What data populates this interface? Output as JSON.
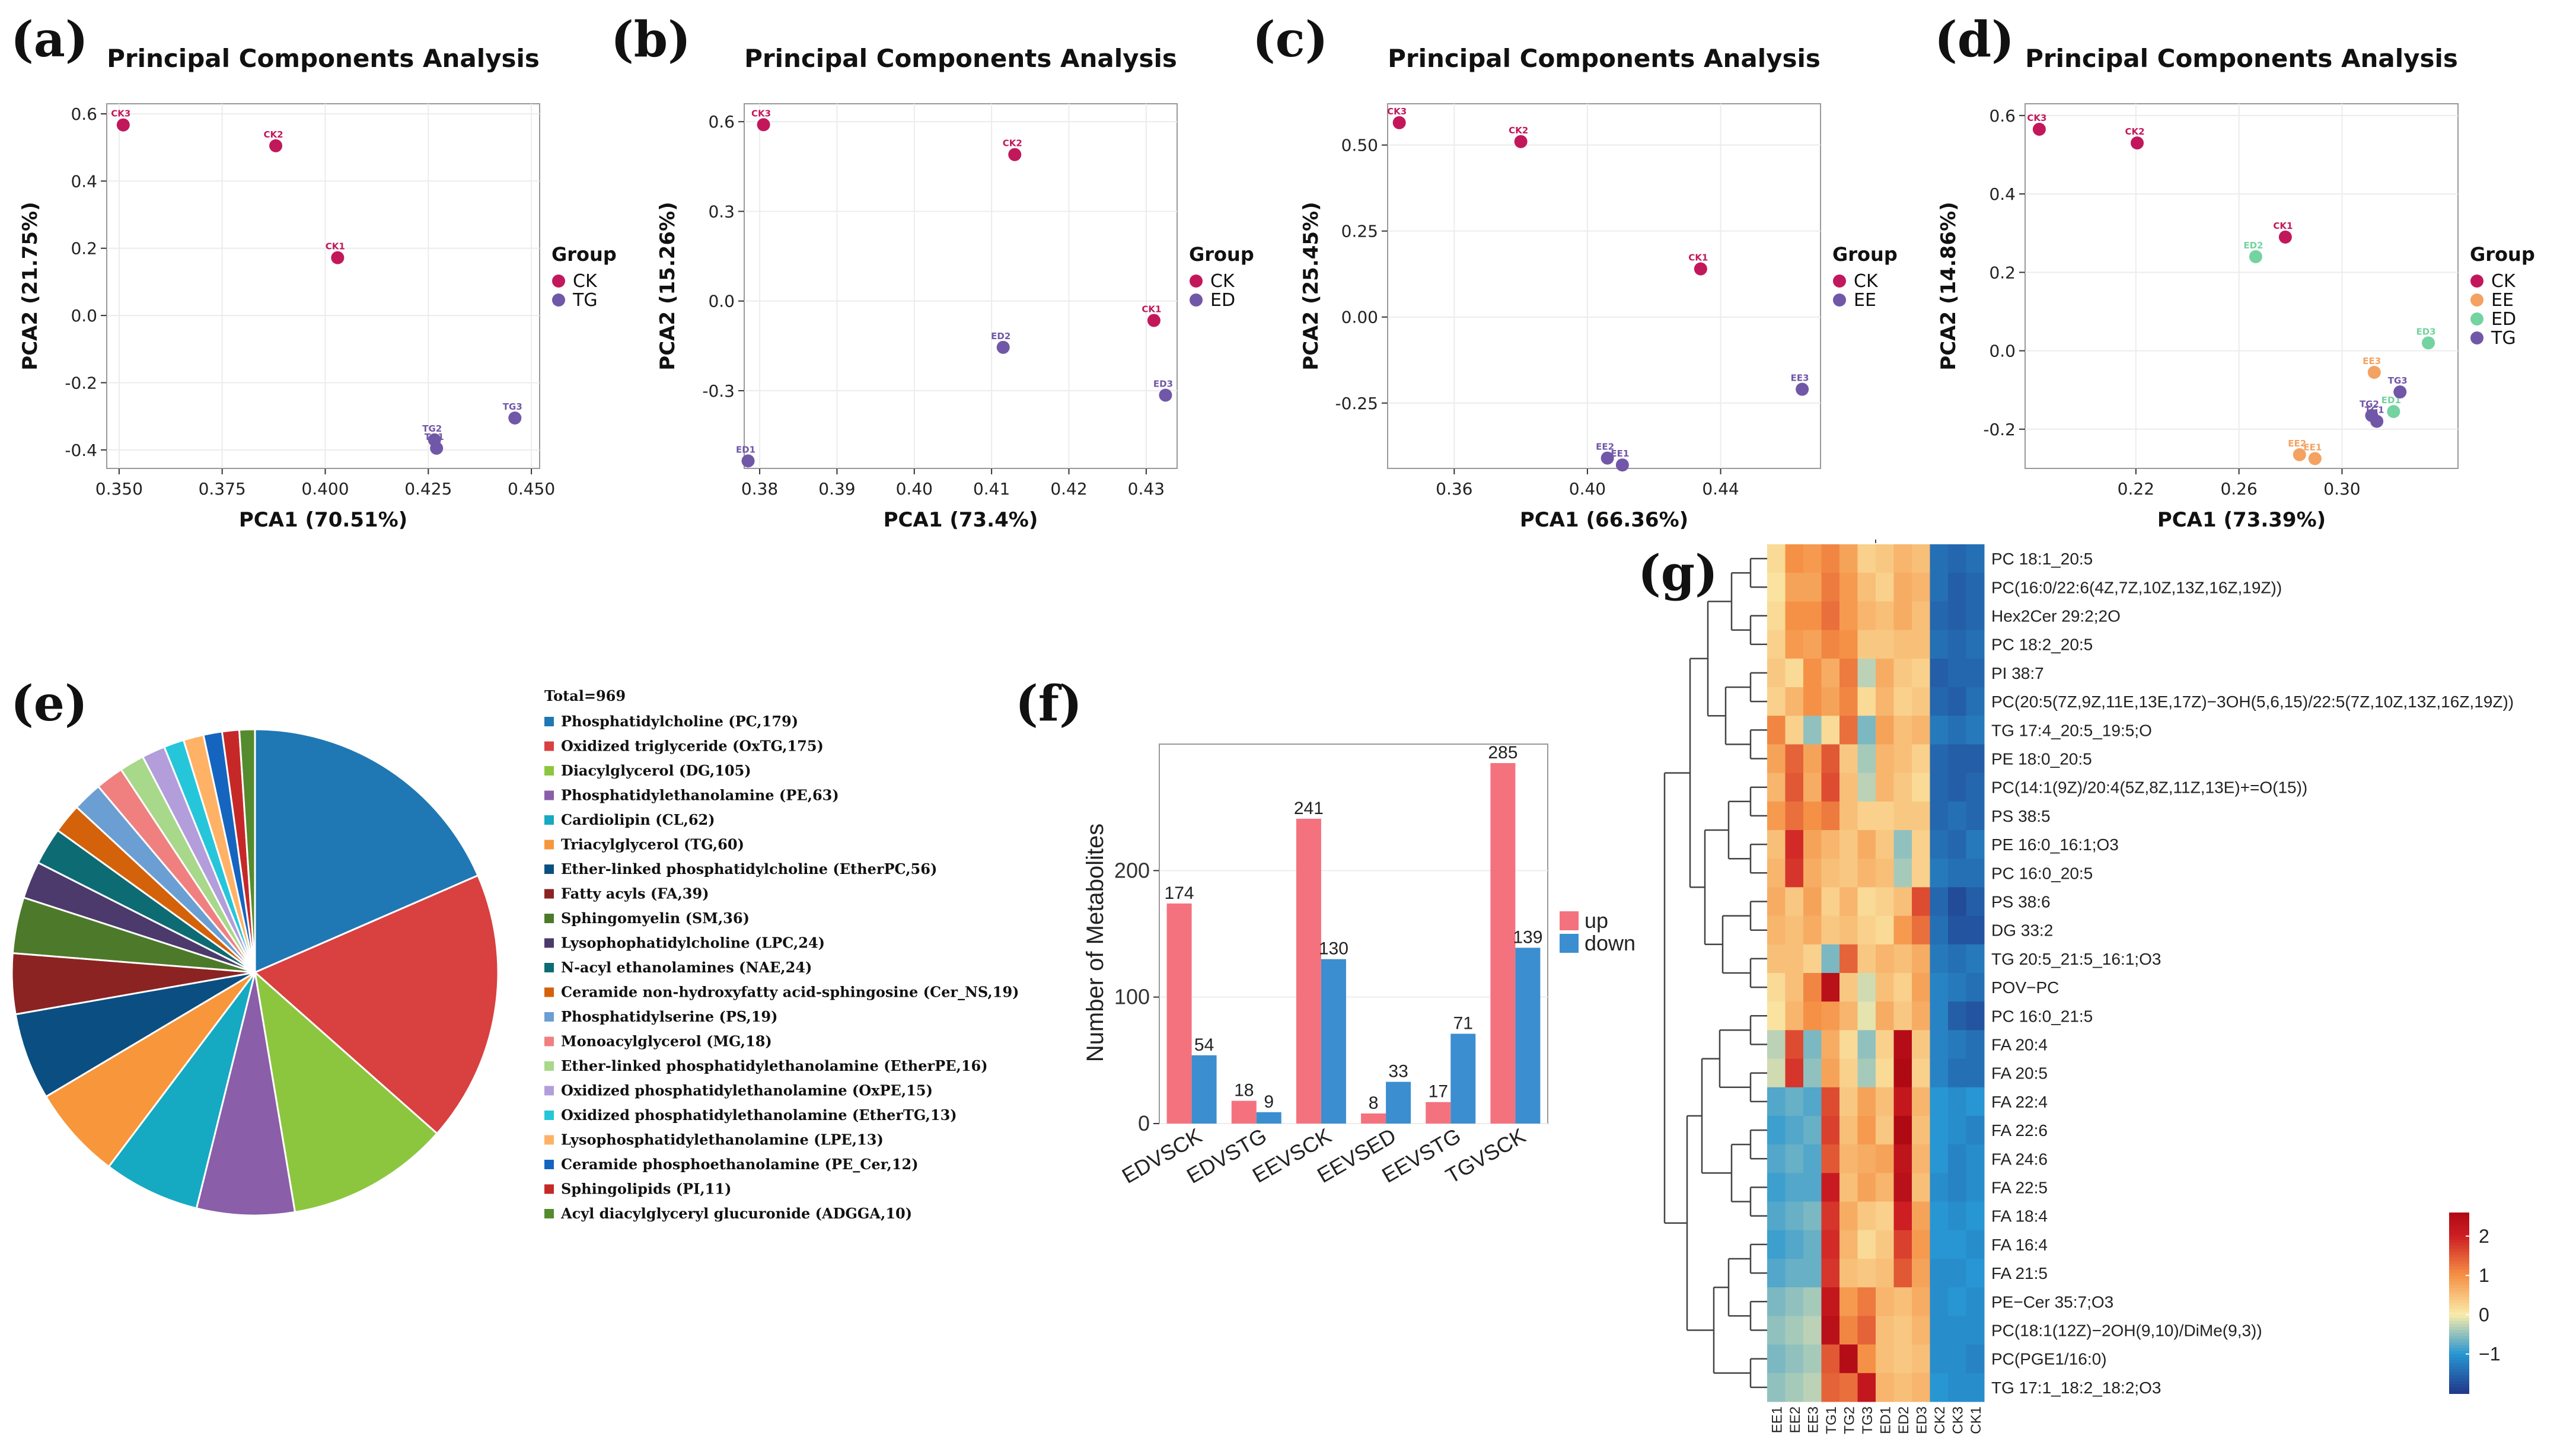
{
  "panel_labels": [
    "(a)",
    "(b)",
    "(c)",
    "(d)",
    "(e)",
    "(f)",
    "(g)"
  ],
  "colors": {
    "CK": "#c2185b",
    "TG": "#7157a8",
    "ED": "#7157a8",
    "EE": "#7157a8",
    "EE_d": "#f4a261",
    "ED_d": "#74d3a0"
  },
  "chart_data": [
    {
      "id": "a",
      "type": "scatter",
      "title": "Principal Components Analysis",
      "xlabel": "PCA1 (70.51%)",
      "ylabel": "PCA2 (21.75%)",
      "xlim": [
        0.347,
        0.452
      ],
      "ylim": [
        -0.455,
        0.63
      ],
      "xticks": [
        0.35,
        0.375,
        0.4,
        0.425,
        0.45
      ],
      "xtick_labels": [
        "0.350",
        "0.375",
        "0.400",
        "0.425",
        "0.450"
      ],
      "yticks": [
        -0.4,
        -0.2,
        0.0,
        0.2,
        0.4,
        0.6
      ],
      "ytick_labels": [
        "-0.4",
        "-0.2",
        "0.0",
        "0.2",
        "0.4",
        "0.6"
      ],
      "legend_title": "Group",
      "legend": [
        {
          "name": "CK",
          "color": "#c2185b"
        },
        {
          "name": "TG",
          "color": "#7157a8"
        }
      ],
      "points": [
        {
          "label": "CK3",
          "x": 0.351,
          "y": 0.567,
          "group": "CK"
        },
        {
          "label": "CK2",
          "x": 0.388,
          "y": 0.505,
          "group": "CK"
        },
        {
          "label": "CK1",
          "x": 0.403,
          "y": 0.172,
          "group": "CK"
        },
        {
          "label": "TG2",
          "x": 0.4265,
          "y": -0.37,
          "group": "TG"
        },
        {
          "label": "TG1",
          "x": 0.427,
          "y": -0.395,
          "group": "TG"
        },
        {
          "label": "TG3",
          "x": 0.446,
          "y": -0.305,
          "group": "TG"
        }
      ]
    },
    {
      "id": "b",
      "type": "scatter",
      "title": "Principal Components Analysis",
      "xlabel": "PCA1 (73.4%)",
      "ylabel": "PCA2 (15.26%)",
      "xlim": [
        0.378,
        0.434
      ],
      "ylim": [
        -0.56,
        0.66
      ],
      "xticks": [
        0.38,
        0.39,
        0.4,
        0.41,
        0.42,
        0.43
      ],
      "xtick_labels": [
        "0.38",
        "0.39",
        "0.40",
        "0.41",
        "0.42",
        "0.43"
      ],
      "yticks": [
        -0.3,
        0.0,
        0.3,
        0.6
      ],
      "ytick_labels": [
        "-0.3",
        "0.0",
        "0.3",
        "0.6"
      ],
      "legend_title": "Group",
      "legend": [
        {
          "name": "CK",
          "color": "#c2185b"
        },
        {
          "name": "ED",
          "color": "#7157a8"
        }
      ],
      "points": [
        {
          "label": "CK3",
          "x": 0.3805,
          "y": 0.59,
          "group": "CK"
        },
        {
          "label": "CK2",
          "x": 0.413,
          "y": 0.49,
          "group": "CK"
        },
        {
          "label": "CK1",
          "x": 0.431,
          "y": -0.065,
          "group": "CK"
        },
        {
          "label": "ED2",
          "x": 0.4115,
          "y": -0.155,
          "group": "ED"
        },
        {
          "label": "ED3",
          "x": 0.4325,
          "y": -0.315,
          "group": "ED"
        },
        {
          "label": "ED1",
          "x": 0.3785,
          "y": -0.535,
          "group": "ED"
        }
      ]
    },
    {
      "id": "c",
      "type": "scatter",
      "title": "Principal Components Analysis",
      "xlabel": "PCA1 (66.36%)",
      "ylabel": "PCA2 (25.45%)",
      "xlim": [
        0.34,
        0.47
      ],
      "ylim": [
        -0.44,
        0.62
      ],
      "xticks": [
        0.36,
        0.4,
        0.44
      ],
      "xtick_labels": [
        "0.36",
        "0.40",
        "0.44"
      ],
      "yticks": [
        -0.25,
        0.0,
        0.25,
        0.5
      ],
      "ytick_labels": [
        "-0.25",
        "0.00",
        "0.25",
        "0.50"
      ],
      "legend_title": "Group",
      "legend": [
        {
          "name": "CK",
          "color": "#c2185b"
        },
        {
          "name": "EE",
          "color": "#7157a8"
        }
      ],
      "points": [
        {
          "label": "CK3",
          "x": 0.3435,
          "y": 0.565,
          "group": "CK"
        },
        {
          "label": "CK2",
          "x": 0.38,
          "y": 0.51,
          "group": "CK"
        },
        {
          "label": "CK1",
          "x": 0.434,
          "y": 0.14,
          "group": "CK"
        },
        {
          "label": "EE3",
          "x": 0.4645,
          "y": -0.21,
          "group": "EE"
        },
        {
          "label": "EE2",
          "x": 0.406,
          "y": -0.41,
          "group": "EE"
        },
        {
          "label": "EE1",
          "x": 0.4105,
          "y": -0.43,
          "group": "EE"
        }
      ]
    },
    {
      "id": "d",
      "type": "scatter",
      "title": "Principal Components Analysis",
      "xlabel": "PCA1 (73.39%)",
      "ylabel": "PCA2 (14.86%)",
      "xlim": [
        0.177,
        0.345
      ],
      "ylim": [
        -0.3,
        0.63
      ],
      "xticks": [
        0.22,
        0.26,
        0.3
      ],
      "xtick_labels": [
        "0.22",
        "0.26",
        "0.30"
      ],
      "yticks": [
        -0.2,
        0.0,
        0.2,
        0.4,
        0.6
      ],
      "ytick_labels": [
        "-0.2",
        "0.0",
        "0.2",
        "0.4",
        "0.6"
      ],
      "legend_title": "Group",
      "legend": [
        {
          "name": "CK",
          "color": "#c2185b"
        },
        {
          "name": "EE",
          "color": "#f4a261"
        },
        {
          "name": "ED",
          "color": "#74d3a0"
        },
        {
          "name": "TG",
          "color": "#7157a8"
        }
      ],
      "points": [
        {
          "label": "CK3",
          "x": 0.1825,
          "y": 0.565,
          "group": "CK"
        },
        {
          "label": "CK2",
          "x": 0.2205,
          "y": 0.53,
          "group": "CK"
        },
        {
          "label": "CK1",
          "x": 0.278,
          "y": 0.29,
          "group": "CK"
        },
        {
          "label": "ED2",
          "x": 0.2665,
          "y": 0.24,
          "group": "ED"
        },
        {
          "label": "ED3",
          "x": 0.3335,
          "y": 0.02,
          "group": "ED"
        },
        {
          "label": "ED1",
          "x": 0.32,
          "y": -0.155,
          "group": "ED"
        },
        {
          "label": "EE3",
          "x": 0.3125,
          "y": -0.055,
          "group": "EE"
        },
        {
          "label": "EE2",
          "x": 0.2835,
          "y": -0.265,
          "group": "EE"
        },
        {
          "label": "EE1",
          "x": 0.2895,
          "y": -0.275,
          "group": "EE"
        },
        {
          "label": "TG3",
          "x": 0.3225,
          "y": -0.105,
          "group": "TG"
        },
        {
          "label": "TG2",
          "x": 0.3115,
          "y": -0.165,
          "group": "TG"
        },
        {
          "label": "TG1",
          "x": 0.3135,
          "y": -0.18,
          "group": "TG"
        }
      ]
    },
    {
      "id": "e",
      "type": "pie",
      "title": "Total=969",
      "slices": [
        {
          "label": "Phosphatidylcholine (PC,179)",
          "value": 179,
          "color": "#1f78b4"
        },
        {
          "label": "Oxidized triglyceride (OxTG,175)",
          "value": 175,
          "color": "#d94040"
        },
        {
          "label": "Diacylglycerol (DG,105)",
          "value": 105,
          "color": "#8cc63f"
        },
        {
          "label": "Phosphatidylethanolamine (PE,63)",
          "value": 63,
          "color": "#8a5ea8"
        },
        {
          "label": "Cardiolipin (CL,62)",
          "value": 62,
          "color": "#16a9c2"
        },
        {
          "label": "Triacylglycerol (TG,60)",
          "value": 60,
          "color": "#f7963a"
        },
        {
          "label": "Ether-linked phosphatidylcholine (EtherPC,56)",
          "value": 56,
          "color": "#0b4f82"
        },
        {
          "label": "Fatty acyls (FA,39)",
          "value": 39,
          "color": "#8b2323"
        },
        {
          "label": "Sphingomyelin (SM,36)",
          "value": 36,
          "color": "#4d7a2a"
        },
        {
          "label": "Lysophophatidylcholine (LPC,24)",
          "value": 24,
          "color": "#4b3a6b"
        },
        {
          "label": "N-acyl ethanolamines (NAE,24)",
          "value": 24,
          "color": "#0d6b73"
        },
        {
          "label": "Ceramide non-hydroxyfatty acid-sphingosine (Cer_NS,19)",
          "value": 19,
          "color": "#d4620b"
        },
        {
          "label": "Phosphatidylserine (PS,19)",
          "value": 19,
          "color": "#6b9fd4"
        },
        {
          "label": "Monoacylglycerol (MG,18)",
          "value": 18,
          "color": "#f08080"
        },
        {
          "label": "Ether-linked phosphatidylethanolamine (EtherPE,16)",
          "value": 16,
          "color": "#a8d88a"
        },
        {
          "label": "Oxidized phosphatidylethanolamine (OxPE,15)",
          "value": 15,
          "color": "#b39ddb"
        },
        {
          "label": "Oxidized phosphatidylethanolamine (EtherTG,13)",
          "value": 13,
          "color": "#26c6da"
        },
        {
          "label": "Lysophosphatidylethanolamine (LPE,13)",
          "value": 13,
          "color": "#ffb266"
        },
        {
          "label": "Ceramide phosphoethanolamine (PE_Cer,12)",
          "value": 12,
          "color": "#1565c0"
        },
        {
          "label": "Sphingolipids (PI,11)",
          "value": 11,
          "color": "#c62828"
        },
        {
          "label": "Acyl diacylglyceryl glucuronide (ADGGA,10)",
          "value": 10,
          "color": "#558b2f"
        }
      ]
    },
    {
      "id": "f",
      "type": "bar",
      "title": "",
      "xlabel": "",
      "ylabel": "Number of Metabolites",
      "categories": [
        "EDVSCK",
        "EDVSTG",
        "EEVSCK",
        "EEVSED",
        "EEVSTG",
        "TGVSCK"
      ],
      "ylim": [
        0,
        300
      ],
      "yticks": [
        0,
        100,
        200
      ],
      "ytick_labels": [
        "0",
        "100",
        "200"
      ],
      "series": [
        {
          "name": "up",
          "color": "#f4727e",
          "values": [
            174,
            18,
            241,
            8,
            17,
            285
          ]
        },
        {
          "name": "down",
          "color": "#3b8ed0",
          "values": [
            54,
            9,
            130,
            33,
            71,
            139
          ]
        }
      ]
    },
    {
      "id": "g",
      "type": "heatmap",
      "columns": [
        "EE1",
        "EE2",
        "EE3",
        "TG1",
        "TG2",
        "TG3",
        "ED1",
        "ED2",
        "ED3",
        "CK2",
        "CK3",
        "CK1"
      ],
      "rows": [
        "PC 18:1_20:5",
        "PC(16:0/22:6(4Z,7Z,10Z,13Z,16Z,19Z))",
        "Hex2Cer 29:2;2O",
        "PC 18:2_20:5",
        "PI 38:7",
        "PC(20:5(7Z,9Z,11E,13E,17Z)−3OH(5,6,15)/22:5(7Z,10Z,13Z,16Z,19Z))",
        "TG 17:4_20:5_19:5;O",
        "PE 18:0_20:5",
        "PC(14:1(9Z)/20:4(5Z,8Z,11Z,13E)+=O(15))",
        "PS 38:5",
        "PE 16:0_16:1;O3",
        "PC 16:0_20:5",
        "PS 38:6",
        "DG 33:2",
        "TG 20:5_21:5_16:1;O3",
        "POV−PC",
        "PC 16:0_21:5",
        "FA 20:4",
        "FA 20:5",
        "FA 22:4",
        "FA 22:6",
        "FA 24:6",
        "FA 22:5",
        "FA 18:4",
        "FA 16:4",
        "FA 21:5",
        "PE−Cer 35:7;O3",
        "PC(18:1(12Z)−2OH(9,10)/DiMe(9,3))",
        "PC(PGE1/16:0)",
        "TG 17:1_18:2_18:2;O3"
      ],
      "values": [
        [
          0.2,
          1.0,
          0.9,
          1.1,
          0.8,
          0.3,
          0.4,
          0.6,
          0.5,
          -1.4,
          -1.5,
          -1.4
        ],
        [
          0.1,
          0.8,
          0.8,
          1.2,
          0.9,
          0.5,
          0.3,
          0.7,
          0.6,
          -1.4,
          -1.6,
          -1.5
        ],
        [
          0.2,
          1.0,
          1.0,
          1.3,
          0.9,
          0.6,
          0.5,
          0.7,
          0.5,
          -1.5,
          -1.6,
          -1.5
        ],
        [
          0.3,
          0.9,
          0.8,
          1.1,
          1.0,
          0.4,
          0.4,
          0.5,
          0.5,
          -1.4,
          -1.5,
          -1.4
        ],
        [
          0.4,
          0.2,
          1.0,
          0.7,
          1.2,
          -0.3,
          0.7,
          0.4,
          0.3,
          -1.6,
          -1.5,
          -1.5
        ],
        [
          0.3,
          0.6,
          1.0,
          0.8,
          1.1,
          0.2,
          0.6,
          0.3,
          0.4,
          -1.5,
          -1.6,
          -1.4
        ],
        [
          1.1,
          0.3,
          -0.5,
          0.2,
          1.3,
          -0.6,
          0.8,
          0.5,
          0.6,
          -1.3,
          -1.4,
          -1.3
        ],
        [
          0.8,
          1.4,
          0.8,
          1.5,
          0.4,
          -0.4,
          0.6,
          0.5,
          0.3,
          -1.5,
          -1.6,
          -1.6
        ],
        [
          0.6,
          1.5,
          0.7,
          1.6,
          0.5,
          -0.3,
          0.6,
          0.4,
          0.2,
          -1.5,
          -1.6,
          -1.5
        ],
        [
          0.9,
          1.3,
          1.0,
          1.2,
          0.5,
          0.3,
          0.3,
          0.4,
          0.4,
          -1.5,
          -1.4,
          -1.5
        ],
        [
          0.5,
          1.9,
          0.8,
          0.6,
          0.4,
          0.7,
          0.4,
          -0.5,
          0.3,
          -1.4,
          -1.5,
          -1.3
        ],
        [
          0.6,
          1.8,
          0.7,
          0.5,
          0.4,
          0.6,
          0.5,
          -0.4,
          0.3,
          -1.3,
          -1.4,
          -1.4
        ],
        [
          0.7,
          0.4,
          0.8,
          0.3,
          0.6,
          0.2,
          0.3,
          0.5,
          1.6,
          -1.5,
          -1.8,
          -1.6
        ],
        [
          0.6,
          0.5,
          0.7,
          0.4,
          0.5,
          0.3,
          0.2,
          0.9,
          1.3,
          -1.4,
          -1.7,
          -1.7
        ],
        [
          0.5,
          0.5,
          0.3,
          -0.6,
          1.4,
          0.4,
          0.6,
          0.5,
          0.7,
          -1.3,
          -1.4,
          -1.3
        ],
        [
          0.2,
          0.5,
          1.1,
          2.4,
          0.4,
          -0.2,
          0.5,
          0.3,
          0.8,
          -1.2,
          -1.3,
          -1.4
        ],
        [
          0.1,
          0.6,
          1.0,
          0.9,
          0.6,
          -0.1,
          0.7,
          0.4,
          0.7,
          -1.2,
          -1.6,
          -1.7
        ],
        [
          -0.3,
          1.6,
          -0.6,
          0.7,
          0.2,
          -0.5,
          0.3,
          2.5,
          0.4,
          -1.2,
          -1.3,
          -1.4
        ],
        [
          -0.2,
          1.8,
          -0.5,
          0.8,
          0.3,
          -0.4,
          0.2,
          2.6,
          0.3,
          -1.2,
          -1.4,
          -1.4
        ],
        [
          -0.8,
          -0.7,
          -0.8,
          1.6,
          0.4,
          0.8,
          0.5,
          2.2,
          0.6,
          -1.0,
          -1.1,
          -1.0
        ],
        [
          -0.9,
          -0.8,
          -0.7,
          1.7,
          0.5,
          0.9,
          0.4,
          2.6,
          0.5,
          -1.0,
          -1.1,
          -1.2
        ],
        [
          -0.8,
          -0.7,
          -0.8,
          1.5,
          0.6,
          0.7,
          0.8,
          2.3,
          0.6,
          -1.0,
          -1.2,
          -1.1
        ],
        [
          -0.9,
          -0.8,
          -0.8,
          2.1,
          0.5,
          0.8,
          0.6,
          2.4,
          0.5,
          -1.1,
          -1.2,
          -1.1
        ],
        [
          -0.8,
          -0.7,
          -0.6,
          1.8,
          0.7,
          0.4,
          0.3,
          2.0,
          0.8,
          -1.0,
          -1.1,
          -1.0
        ],
        [
          -0.9,
          -0.8,
          -0.7,
          1.9,
          0.6,
          0.2,
          0.4,
          1.7,
          0.9,
          -1.0,
          -1.0,
          -1.1
        ],
        [
          -0.8,
          -0.7,
          -0.7,
          1.8,
          0.5,
          0.4,
          0.5,
          1.5,
          0.8,
          -1.1,
          -1.1,
          -1.0
        ],
        [
          -0.6,
          -0.5,
          -0.4,
          2.2,
          0.9,
          1.2,
          0.6,
          0.5,
          0.7,
          -1.1,
          -1.0,
          -1.1
        ],
        [
          -0.5,
          -0.4,
          -0.3,
          2.4,
          1.1,
          1.4,
          0.5,
          0.4,
          0.6,
          -1.1,
          -1.1,
          -1.1
        ],
        [
          -0.6,
          -0.5,
          -0.4,
          1.5,
          2.5,
          1.0,
          0.5,
          0.4,
          0.5,
          -1.1,
          -1.1,
          -1.2
        ],
        [
          -0.5,
          -0.4,
          -0.3,
          1.4,
          1.3,
          2.2,
          0.6,
          0.5,
          0.6,
          -1.0,
          -1.1,
          -1.1
        ]
      ],
      "colorbar": {
        "ticks": [
          2,
          1,
          0,
          -1
        ],
        "tick_labels": [
          "2",
          "1",
          "0",
          "−1"
        ],
        "range": [
          -2,
          2.6
        ]
      }
    }
  ]
}
